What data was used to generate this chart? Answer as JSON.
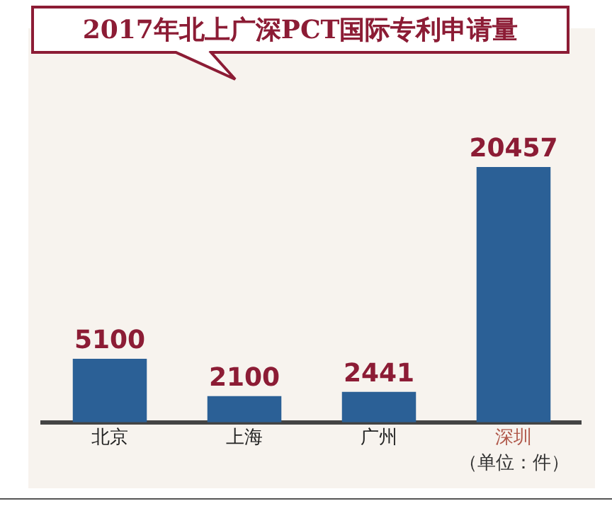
{
  "chart_data": {
    "type": "bar",
    "title": "2017年北上广深PCT国际专利申请量",
    "categories": [
      "北京",
      "上海",
      "广州",
      "深圳"
    ],
    "values": [
      5100,
      2100,
      2441,
      20457
    ],
    "colors": [
      "#2b6096",
      "#2b6096",
      "#2b6096",
      "#2b6096"
    ],
    "data_labels": true,
    "annotations": [
      "（单位：件）"
    ]
  }
}
